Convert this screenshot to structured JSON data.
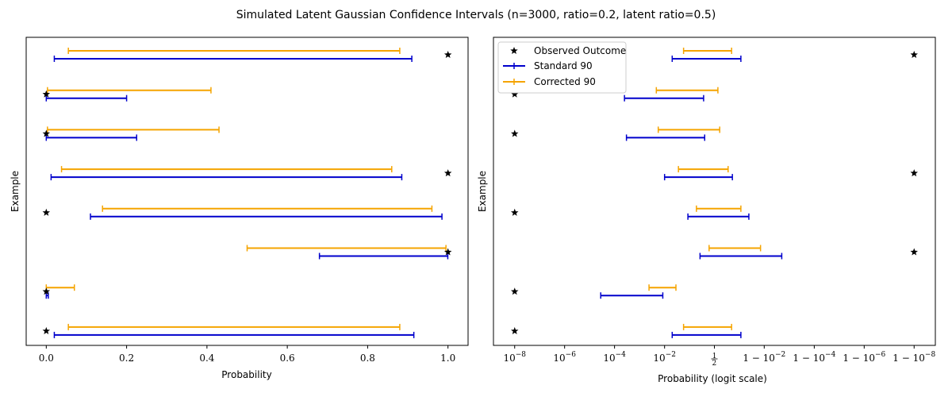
{
  "title": "Simulated Latent Gaussian Confidence Intervals (n=3000, ratio=0.2, latent ratio=0.5)",
  "colors": {
    "standard": "#0000cc",
    "corrected": "#f5a400",
    "observed": "#000000"
  },
  "legend": {
    "observed": "Observed Outcome",
    "standard": "Standard 90",
    "corrected": "Corrected 90"
  },
  "chart_data": [
    {
      "type": "interval",
      "xlabel": "Probability",
      "ylabel": "Example",
      "xlim": [
        -0.05,
        1.05
      ],
      "xticks": [
        {
          "value": 0.0,
          "label": "0.0"
        },
        {
          "value": 0.2,
          "label": "0.2"
        },
        {
          "value": 0.4,
          "label": "0.4"
        },
        {
          "value": 0.6,
          "label": "0.6"
        },
        {
          "value": 0.8,
          "label": "0.8"
        },
        {
          "value": 1.0,
          "label": "1.0"
        }
      ],
      "examples": [
        {
          "observed": 1,
          "standard": [
            0.02,
            0.91
          ],
          "corrected": [
            0.055,
            0.88
          ]
        },
        {
          "observed": 0,
          "standard": [
            0.0,
            0.2
          ],
          "corrected": [
            0.003,
            0.41
          ]
        },
        {
          "observed": 0,
          "standard": [
            0.0,
            0.225
          ],
          "corrected": [
            0.003,
            0.43
          ]
        },
        {
          "observed": 1,
          "standard": [
            0.012,
            0.885
          ],
          "corrected": [
            0.038,
            0.86
          ]
        },
        {
          "observed": 0,
          "standard": [
            0.11,
            0.985
          ],
          "corrected": [
            0.14,
            0.96
          ]
        },
        {
          "observed": 1,
          "standard": [
            0.68,
            0.9995
          ],
          "corrected": [
            0.5,
            0.995
          ]
        },
        {
          "observed": 0,
          "standard": [
            0.0,
            0.005
          ],
          "corrected": [
            0.0,
            0.07
          ]
        },
        {
          "observed": 0,
          "standard": [
            0.02,
            0.915
          ],
          "corrected": [
            0.055,
            0.88
          ]
        }
      ]
    },
    {
      "type": "interval",
      "xscale": "logit",
      "xlabel": "Probability (logit scale)",
      "ylabel": "Example",
      "xticks": [
        {
          "value": 1e-08,
          "label": "10^-8"
        },
        {
          "value": 1e-06,
          "label": "10^-6"
        },
        {
          "value": 0.0001,
          "label": "10^-4"
        },
        {
          "value": 0.01,
          "label": "10^-2"
        },
        {
          "value": 0.5,
          "label": "1/2"
        },
        {
          "value": 0.99,
          "label": "1 − 10^-2"
        },
        {
          "value": 0.9999,
          "label": "1 − 10^-4"
        },
        {
          "value": 0.999999,
          "label": "1 − 10^-6"
        },
        {
          "value": 0.99999999,
          "label": "1 − 10^-8"
        }
      ],
      "observed_display_limits": [
        1e-08,
        0.99999999
      ],
      "examples": [
        {
          "observed": 1,
          "standard": [
            0.02,
            0.92
          ],
          "corrected": [
            0.055,
            0.83
          ]
        },
        {
          "observed": 0,
          "standard": [
            0.00025,
            0.27
          ],
          "corrected": [
            0.0047,
            0.58
          ]
        },
        {
          "observed": 0,
          "standard": [
            0.0003,
            0.29
          ],
          "corrected": [
            0.0056,
            0.62
          ]
        },
        {
          "observed": 1,
          "standard": [
            0.01,
            0.84
          ],
          "corrected": [
            0.035,
            0.78
          ]
        },
        {
          "observed": 0,
          "standard": [
            0.08,
            0.96
          ],
          "corrected": [
            0.16,
            0.92
          ]
        },
        {
          "observed": 1,
          "standard": [
            0.21,
            0.998
          ],
          "corrected": [
            0.38,
            0.986
          ]
        },
        {
          "observed": 0,
          "standard": [
            2.8e-05,
            0.0085
          ],
          "corrected": [
            0.0024,
            0.028
          ]
        },
        {
          "observed": 0,
          "standard": [
            0.02,
            0.92
          ],
          "corrected": [
            0.055,
            0.83
          ]
        }
      ]
    }
  ]
}
